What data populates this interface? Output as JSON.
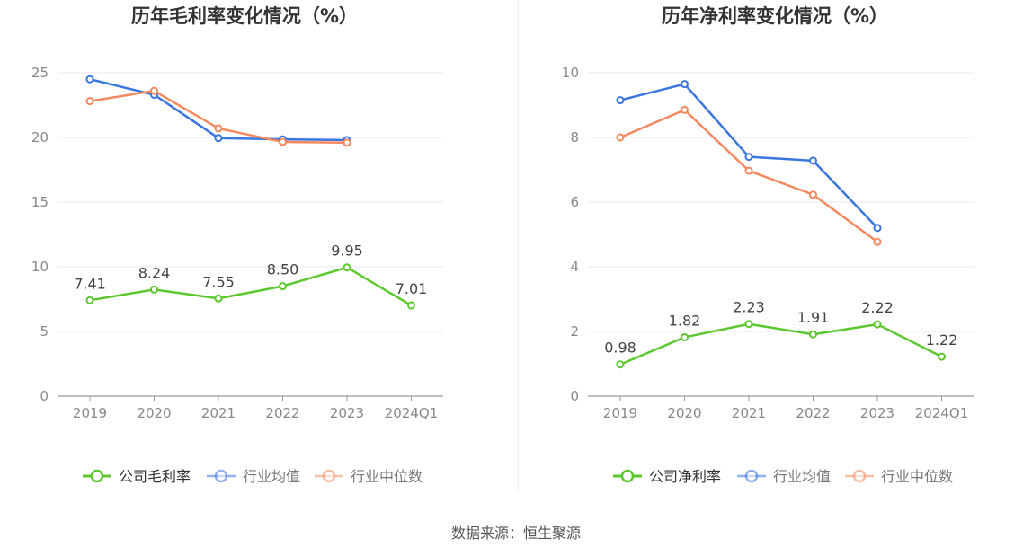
{
  "source_label": "数据来源：恒生聚源",
  "colors": {
    "company": "#5cc72e",
    "industry_avg": "#3a76e0",
    "industry_median": "#f4895f",
    "axis": "#999999",
    "grid": "#e8e8f0",
    "tick_text": "#888888",
    "title_text": "#333333",
    "label_text": "#444444"
  },
  "chart_data": [
    {
      "type": "line",
      "title": "历年毛利率变化情况（%）",
      "categories": [
        "2019",
        "2020",
        "2021",
        "2022",
        "2023",
        "2024Q1"
      ],
      "ylim": [
        0,
        25
      ],
      "yticks": [
        0,
        5,
        10,
        15,
        20,
        25
      ],
      "grid": true,
      "legend_position": "bottom",
      "series": [
        {
          "name": "公司毛利率",
          "color_key": "company",
          "values": [
            7.41,
            8.24,
            7.55,
            8.5,
            9.95,
            7.01
          ],
          "labels": [
            "7.41",
            "8.24",
            "7.55",
            "8.50",
            "9.95",
            "7.01"
          ]
        },
        {
          "name": "行业均值",
          "color_key": "industry_avg",
          "values": [
            24.5,
            23.3,
            19.95,
            19.85,
            19.8,
            null
          ]
        },
        {
          "name": "行业中位数",
          "color_key": "industry_median",
          "values": [
            22.8,
            23.6,
            20.7,
            19.65,
            19.6,
            null
          ]
        }
      ]
    },
    {
      "type": "line",
      "title": "历年净利率变化情况（%）",
      "categories": [
        "2019",
        "2020",
        "2021",
        "2022",
        "2023",
        "2024Q1"
      ],
      "ylim": [
        0,
        10
      ],
      "yticks": [
        0,
        2,
        4,
        6,
        8,
        10
      ],
      "grid": true,
      "legend_position": "bottom",
      "series": [
        {
          "name": "公司净利率",
          "color_key": "company",
          "values": [
            0.98,
            1.82,
            2.23,
            1.91,
            2.22,
            1.22
          ],
          "labels": [
            "0.98",
            "1.82",
            "2.23",
            "1.91",
            "2.22",
            "1.22"
          ]
        },
        {
          "name": "行业均值",
          "color_key": "industry_avg",
          "values": [
            9.15,
            9.65,
            7.4,
            7.28,
            5.2,
            null
          ]
        },
        {
          "name": "行业中位数",
          "color_key": "industry_median",
          "values": [
            8.0,
            8.85,
            6.97,
            6.23,
            4.77,
            null
          ]
        }
      ]
    }
  ]
}
